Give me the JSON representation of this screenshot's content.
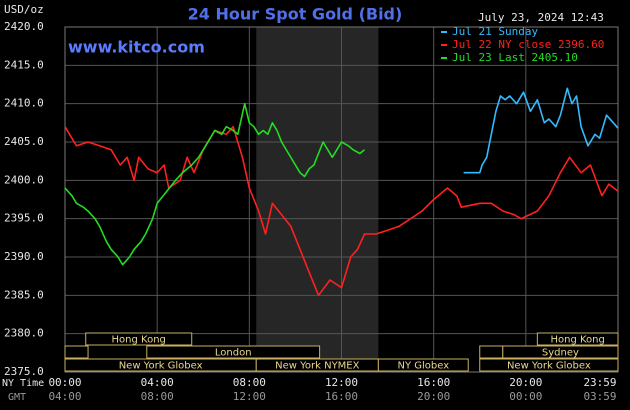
{
  "chart_data": {
    "type": "line",
    "title": "24 Hour Spot Gold (Bid)",
    "y_label": "USD/oz",
    "date": "July 23, 2024 12:43",
    "watermark": "www.kitco.com",
    "x_label": "NY Time",
    "x2_label": "GMT",
    "xlim": [
      0,
      24
    ],
    "xticks": [
      {
        "value": 0,
        "label": "00:00"
      },
      {
        "value": 4,
        "label": "04:00"
      },
      {
        "value": 8,
        "label": "08:00"
      },
      {
        "value": 12,
        "label": "12:00"
      },
      {
        "value": 16,
        "label": "16:00"
      },
      {
        "value": 20,
        "label": "20:00"
      },
      {
        "value": 24,
        "label": "23:59"
      }
    ],
    "x2ticks": [
      {
        "value": 0,
        "label": "04:00"
      },
      {
        "value": 4,
        "label": "08:00"
      },
      {
        "value": 8,
        "label": "12:00"
      },
      {
        "value": 12,
        "label": "16:00"
      },
      {
        "value": 16,
        "label": "20:00"
      },
      {
        "value": 20,
        "label": "00:00"
      },
      {
        "value": 24,
        "label": "03:59"
      }
    ],
    "ylim": [
      2375,
      2420
    ],
    "yticks": [
      {
        "value": 2375,
        "label": "2375.0"
      },
      {
        "value": 2380,
        "label": "2380.0"
      },
      {
        "value": 2385,
        "label": "2385.0"
      },
      {
        "value": 2390,
        "label": "2390.0"
      },
      {
        "value": 2395,
        "label": "2395.0"
      },
      {
        "value": 2400,
        "label": "2400.0"
      },
      {
        "value": 2405,
        "label": "2405.0"
      },
      {
        "value": 2410,
        "label": "2410.0"
      },
      {
        "value": 2415,
        "label": "2415.0"
      },
      {
        "value": 2420,
        "label": "2420.0"
      }
    ],
    "grid": true,
    "sessions": [
      {
        "label": "Hong Kong",
        "start": 0.9,
        "end": 5.5,
        "row": 1
      },
      {
        "label": null,
        "start": 0,
        "end": 1.0,
        "row": 2
      },
      {
        "label": "London",
        "start": 3.55,
        "end": 11.05,
        "row": 2
      },
      {
        "label": "New York Globex",
        "start": 0,
        "end": 8.3,
        "row": 3
      },
      {
        "label": "New York NYMEX",
        "start": 8.3,
        "end": 13.6,
        "row": 3,
        "shaded": true
      },
      {
        "label": "NY Globex",
        "start": 13.6,
        "end": 17.5,
        "row": 3
      },
      {
        "label": "Hong Kong",
        "start": 20.5,
        "end": 24,
        "row": 1
      },
      {
        "label": null,
        "start": 18.0,
        "end": 19.0,
        "row": 2
      },
      {
        "label": "Sydney",
        "start": 19.0,
        "end": 24,
        "row": 2
      },
      {
        "label": "New York Globex",
        "start": 18.0,
        "end": 24,
        "row": 3
      }
    ],
    "series": [
      {
        "name": "Jul 21 Sunday",
        "color": "#33bbff",
        "x": [
          17.3,
          18.0,
          18.1,
          18.3,
          18.5,
          18.7,
          18.9,
          19.1,
          19.3,
          19.6,
          19.9,
          20.2,
          20.5,
          20.8,
          21.0,
          21.3,
          21.5,
          21.8,
          22.0,
          22.2,
          22.4,
          22.7,
          23.0,
          23.2,
          23.5,
          23.8,
          24.0
        ],
        "values": [
          2401,
          2401,
          2402,
          2403,
          2406,
          2409,
          2411,
          2410.5,
          2411,
          2410,
          2411.5,
          2409,
          2410.5,
          2407.5,
          2408,
          2407,
          2408.5,
          2412,
          2410,
          2411,
          2407,
          2404.5,
          2406,
          2405.5,
          2408.5,
          2407.5,
          2406.8
        ]
      },
      {
        "name": "Jul 22 NY close 2396.60",
        "color": "#ff2020",
        "x": [
          0,
          0.3,
          0.5,
          1.0,
          1.5,
          2.0,
          2.4,
          2.7,
          3.0,
          3.2,
          3.6,
          4.0,
          4.3,
          4.5,
          5.0,
          5.3,
          5.6,
          6.0,
          6.5,
          7.0,
          7.3,
          7.7,
          8.0,
          8.4,
          8.7,
          9.0,
          9.4,
          9.8,
          10.2,
          10.6,
          11.0,
          11.5,
          12.0,
          12.4,
          12.7,
          13.0,
          13.5,
          14.0,
          14.5,
          15.0,
          15.5,
          16.0,
          16.6,
          17.0,
          17.2,
          18.0,
          18.5,
          19.0,
          19.5,
          19.8,
          20.5,
          21.0,
          21.5,
          21.9,
          22.4,
          22.8,
          23.3,
          23.6,
          24.0
        ],
        "values": [
          2407,
          2405.5,
          2404.5,
          2405,
          2404.5,
          2404,
          2402,
          2403,
          2400,
          2403,
          2401.5,
          2401,
          2402,
          2399,
          2400,
          2403,
          2401,
          2404,
          2406.5,
          2406,
          2407,
          2403,
          2399,
          2396,
          2393,
          2397,
          2395.5,
          2394,
          2391,
          2388,
          2385,
          2387,
          2386,
          2390,
          2391,
          2393,
          2393,
          2393.5,
          2394,
          2395,
          2396,
          2397.5,
          2399,
          2398,
          2396.5,
          2397,
          2397,
          2396,
          2395.5,
          2395,
          2396,
          2398,
          2401,
          2403,
          2401,
          2402,
          2398,
          2399.5,
          2398.6
        ]
      },
      {
        "name": "Jul 23 Last 2405.10",
        "color": "#22dd22",
        "x": [
          0,
          0.3,
          0.5,
          0.8,
          1.0,
          1.3,
          1.5,
          1.8,
          2.0,
          2.3,
          2.5,
          2.8,
          3.0,
          3.3,
          3.5,
          3.8,
          4.0,
          4.4,
          4.8,
          5.1,
          5.5,
          5.8,
          6.0,
          6.3,
          6.5,
          6.8,
          7.0,
          7.3,
          7.5,
          7.8,
          8.0,
          8.2,
          8.4,
          8.6,
          8.8,
          9.0,
          9.2,
          9.4,
          9.7,
          10.0,
          10.2,
          10.4,
          10.6,
          10.8,
          11.0,
          11.2,
          11.4,
          11.6,
          11.8,
          12.0,
          12.3,
          12.5,
          12.8,
          13.0
        ],
        "values": [
          2399,
          2398,
          2397,
          2396.5,
          2396,
          2395,
          2394,
          2392,
          2391,
          2390,
          2389,
          2390,
          2391,
          2392,
          2393,
          2395,
          2397,
          2398.5,
          2400,
          2401,
          2402,
          2403,
          2404,
          2405.5,
          2406.5,
          2406,
          2407,
          2406.5,
          2406,
          2410,
          2407.5,
          2407,
          2406,
          2406.5,
          2406,
          2407.5,
          2406.5,
          2405,
          2403.5,
          2402,
          2401,
          2400.5,
          2401.5,
          2402,
          2403.5,
          2405,
          2404,
          2403,
          2404,
          2405,
          2404.5,
          2404,
          2403.5,
          2404
        ]
      }
    ]
  }
}
